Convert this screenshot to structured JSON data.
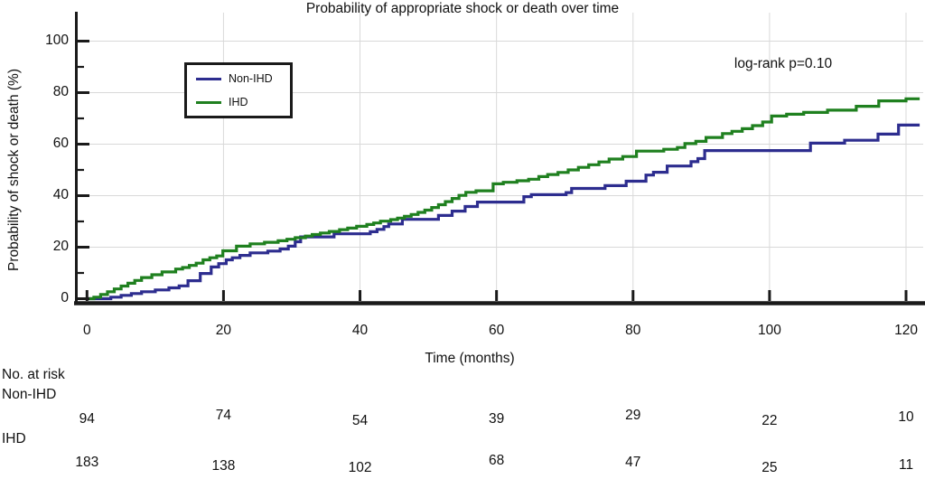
{
  "title": "Probability of appropriate shock or death over time",
  "annotation": "log-rank p=0.10",
  "axes": {
    "x_label": "Time (months)",
    "y_label": "Probability of shock or death (%)",
    "x_ticks": [
      0,
      20,
      40,
      60,
      80,
      100,
      120
    ],
    "y_ticks": [
      0,
      20,
      40,
      60,
      80,
      100
    ],
    "y_minor_ticks": [
      10,
      30,
      50,
      70,
      90
    ],
    "x_range": [
      0,
      120
    ],
    "y_range": [
      0,
      100
    ]
  },
  "legend": {
    "position": "top-left",
    "items": [
      {
        "label": "Non-IHD",
        "color": "#2d2d8f"
      },
      {
        "label": "IHD",
        "color": "#1f801f"
      }
    ]
  },
  "colors": {
    "non_ihd": "#2d2d8f",
    "ihd": "#1f801f",
    "axis": "#1a1a1a",
    "grid": "#d9d9d9"
  },
  "risk_table": {
    "header": "No. at risk",
    "time_points": [
      0,
      20,
      40,
      60,
      80,
      100,
      120
    ],
    "rows": [
      {
        "label": "Non-IHD",
        "counts": [
          94,
          74,
          54,
          39,
          29,
          22,
          10
        ]
      },
      {
        "label": "IHD",
        "counts": [
          183,
          138,
          102,
          68,
          47,
          25,
          11
        ]
      }
    ]
  },
  "chart_data": {
    "type": "line",
    "subtype": "kaplan-meier-step",
    "title": "Probability of appropriate shock or death over time",
    "xlabel": "Time (months)",
    "ylabel": "Probability of shock or death (%)",
    "xlim": [
      0,
      120
    ],
    "ylim": [
      0,
      100
    ],
    "grid": true,
    "step": "after",
    "series": [
      {
        "name": "Non-IHD",
        "color": "#2d2d8f",
        "points": [
          [
            0,
            0
          ],
          [
            3.5,
            0.6
          ],
          [
            5,
            1.3
          ],
          [
            6.5,
            2
          ],
          [
            8,
            2.7
          ],
          [
            10,
            3.4
          ],
          [
            12,
            4.2
          ],
          [
            13.5,
            5
          ],
          [
            14.8,
            7
          ],
          [
            16.6,
            9.8
          ],
          [
            18.2,
            12.3
          ],
          [
            19.3,
            13.6
          ],
          [
            20.4,
            15.1
          ],
          [
            21.3,
            15.9
          ],
          [
            22.4,
            16.8
          ],
          [
            23.9,
            17.8
          ],
          [
            26.5,
            18.5
          ],
          [
            28.3,
            19.3
          ],
          [
            29.5,
            20.4
          ],
          [
            30.5,
            22.1
          ],
          [
            31.3,
            24
          ],
          [
            36.2,
            25.2
          ],
          [
            41.5,
            26
          ],
          [
            42.5,
            26.9
          ],
          [
            43.5,
            28
          ],
          [
            44.2,
            29
          ],
          [
            46.2,
            30.8
          ],
          [
            51.5,
            32.3
          ],
          [
            53.5,
            34
          ],
          [
            55.4,
            35.8
          ],
          [
            57.2,
            37.5
          ],
          [
            64,
            39.6
          ],
          [
            65.1,
            40.4
          ],
          [
            70.2,
            41.2
          ],
          [
            71,
            42.8
          ],
          [
            75.9,
            43.9
          ],
          [
            79,
            45.6
          ],
          [
            81.9,
            48
          ],
          [
            83,
            49.1
          ],
          [
            85,
            51.5
          ],
          [
            88.5,
            53.2
          ],
          [
            89.5,
            54.4
          ],
          [
            90.5,
            57.5
          ],
          [
            106,
            60.4
          ],
          [
            111,
            61.5
          ],
          [
            115.9,
            63.9
          ],
          [
            118.9,
            67.4
          ],
          [
            122,
            67.4
          ]
        ]
      },
      {
        "name": "IHD",
        "color": "#1f801f",
        "points": [
          [
            0,
            0
          ],
          [
            1,
            0.6
          ],
          [
            2,
            1.6
          ],
          [
            3,
            2.7
          ],
          [
            4,
            3.8
          ],
          [
            5,
            4.9
          ],
          [
            6,
            6
          ],
          [
            7,
            7.1
          ],
          [
            8,
            8.2
          ],
          [
            9.5,
            9.3
          ],
          [
            11,
            10.4
          ],
          [
            13,
            11.5
          ],
          [
            14,
            12.1
          ],
          [
            15,
            12.9
          ],
          [
            16,
            13.8
          ],
          [
            17,
            15.1
          ],
          [
            18,
            15.9
          ],
          [
            19,
            16.6
          ],
          [
            19.9,
            18.6
          ],
          [
            21.9,
            20.4
          ],
          [
            23.9,
            21.3
          ],
          [
            26,
            21.9
          ],
          [
            28,
            22.5
          ],
          [
            29.3,
            23.1
          ],
          [
            30.5,
            23.7
          ],
          [
            32,
            24.3
          ],
          [
            33,
            24.9
          ],
          [
            34.2,
            25.5
          ],
          [
            35.5,
            26.1
          ],
          [
            37,
            26.8
          ],
          [
            38.2,
            27.4
          ],
          [
            39.5,
            28.1
          ],
          [
            41,
            28.8
          ],
          [
            42,
            29.4
          ],
          [
            43,
            30.1
          ],
          [
            44.5,
            30.7
          ],
          [
            45.5,
            31.3
          ],
          [
            46.5,
            32
          ],
          [
            47.5,
            32.7
          ],
          [
            48.5,
            33.5
          ],
          [
            49.5,
            34.4
          ],
          [
            50.5,
            35.4
          ],
          [
            51.5,
            36.5
          ],
          [
            52.5,
            37.7
          ],
          [
            53.5,
            38.9
          ],
          [
            54.5,
            40.1
          ],
          [
            55.5,
            41.3
          ],
          [
            57,
            41.9
          ],
          [
            59.5,
            44.6
          ],
          [
            61,
            45.2
          ],
          [
            63,
            45.8
          ],
          [
            64.7,
            46.4
          ],
          [
            66.2,
            47.4
          ],
          [
            67.5,
            48.2
          ],
          [
            69,
            49
          ],
          [
            70.5,
            50
          ],
          [
            72,
            51
          ],
          [
            73.5,
            52
          ],
          [
            75,
            53.1
          ],
          [
            76.5,
            54.2
          ],
          [
            78.5,
            55.2
          ],
          [
            80.5,
            57.3
          ],
          [
            84.5,
            58
          ],
          [
            86.5,
            58.7
          ],
          [
            87.6,
            60.2
          ],
          [
            89.2,
            61.1
          ],
          [
            90.7,
            62.6
          ],
          [
            93.1,
            64.1
          ],
          [
            94.5,
            65
          ],
          [
            96,
            66
          ],
          [
            97.5,
            67.2
          ],
          [
            99,
            68.6
          ],
          [
            100.3,
            70.9
          ],
          [
            102.5,
            71.6
          ],
          [
            105,
            72.3
          ],
          [
            108.5,
            73.2
          ],
          [
            112.7,
            74.7
          ],
          [
            116,
            76.8
          ],
          [
            120,
            77.6
          ],
          [
            122,
            77.6
          ]
        ]
      }
    ],
    "annotations": [
      "log-rank p=0.10"
    ]
  }
}
